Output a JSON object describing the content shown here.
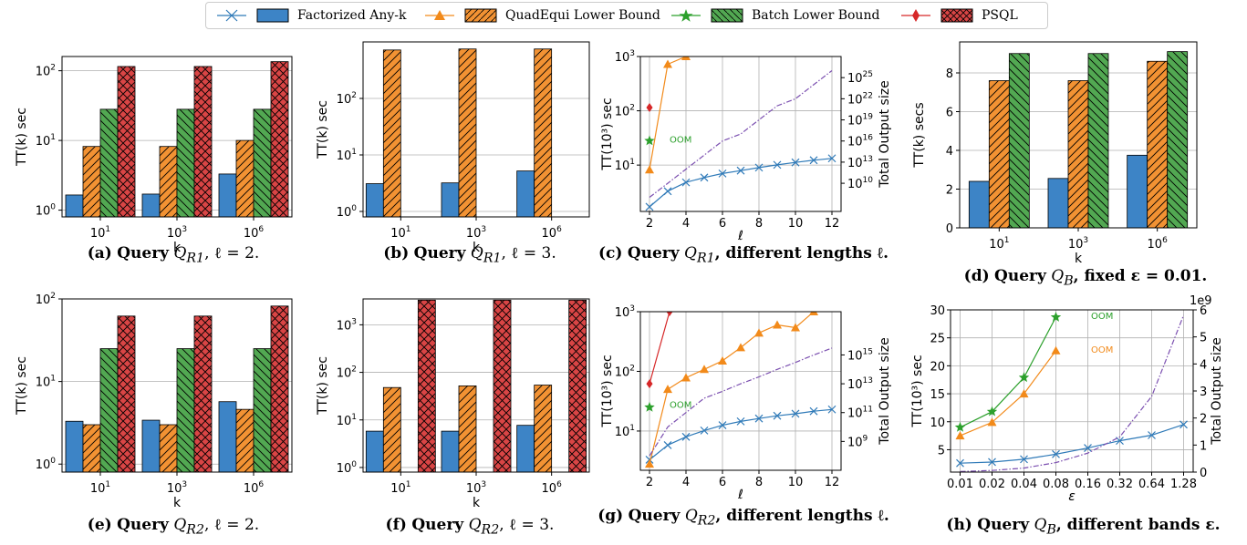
{
  "colors": {
    "factorized": "#3d84c6",
    "quadequi": "#f29233",
    "batch": "#52a852",
    "psql": "#d94545",
    "quad_line": "#f28a1a",
    "batch_line": "#2ca02c",
    "psql_line": "#d62728",
    "fact_line": "#2f7ab8",
    "output_line": "#7b4fb0"
  },
  "legend": [
    {
      "label": "Factorized Any-k",
      "icon": "x-marker-blue",
      "key": "factorized"
    },
    {
      "label": "QuadEqui Lower Bound",
      "icon": "triangle-marker-orange",
      "key": "quadequi"
    },
    {
      "label": "Batch Lower Bound",
      "icon": "star-marker-green",
      "key": "batch"
    },
    {
      "label": "PSQL",
      "icon": "diamond-marker-red",
      "key": "psql"
    }
  ],
  "panels": [
    {
      "id": "a",
      "caption": {
        "letter": "(a)",
        "word": "Query",
        "math": "Q",
        "sub": "R1",
        "rest": ", ℓ = 2."
      },
      "chart_data": {
        "type": "bar",
        "ylog": true,
        "ylim": [
          0.8,
          160
        ],
        "ylabel": "TT(k) sec",
        "xlabel": "k",
        "yticks": [
          {
            "v": 1,
            "b": "10",
            "e": "0"
          },
          {
            "v": 10,
            "b": "10",
            "e": "1"
          },
          {
            "v": 100,
            "b": "10",
            "e": "2"
          }
        ],
        "categories": [
          {
            "b": "10",
            "e": "1"
          },
          {
            "b": "10",
            "e": "3"
          },
          {
            "b": "10",
            "e": "6"
          }
        ],
        "series": [
          {
            "key": "factorized",
            "values": [
              1.65,
              1.7,
              3.3
            ]
          },
          {
            "key": "quadequi",
            "values": [
              8.2,
              8.2,
              10
            ]
          },
          {
            "key": "batch",
            "values": [
              28,
              28,
              28
            ]
          },
          {
            "key": "psql",
            "values": [
              115,
              115,
              135
            ]
          }
        ]
      }
    },
    {
      "id": "b",
      "caption": {
        "letter": "(b)",
        "word": "Query",
        "math": "Q",
        "sub": "R1",
        "rest": ", ℓ = 3."
      },
      "chart_data": {
        "type": "bar",
        "ylog": true,
        "ylim": [
          0.8,
          1000
        ],
        "ylabel": "TT(k) sec",
        "xlabel": "k",
        "yticks": [
          {
            "v": 1,
            "b": "10",
            "e": "0"
          },
          {
            "v": 10,
            "b": "10",
            "e": "1"
          },
          {
            "v": 100,
            "b": "10",
            "e": "2"
          }
        ],
        "categories": [
          {
            "b": "10",
            "e": "1"
          },
          {
            "b": "10",
            "e": "3"
          },
          {
            "b": "10",
            "e": "6"
          }
        ],
        "series": [
          {
            "key": "factorized",
            "values": [
              3.1,
              3.2,
              5.2
            ]
          },
          {
            "key": "quadequi",
            "values": [
              720,
              750,
              750
            ]
          },
          {
            "key": "batch",
            "values": [
              null,
              null,
              null
            ]
          },
          {
            "key": "psql",
            "values": [
              null,
              null,
              null
            ]
          }
        ]
      }
    },
    {
      "id": "c",
      "caption": {
        "letter": "(c)",
        "word": "Query",
        "math": "Q",
        "sub": "R1",
        "rest": ", different lengths ℓ."
      },
      "chart_data": {
        "type": "line",
        "ylog": true,
        "ylim": [
          1.4,
          1000
        ],
        "xlim": [
          1.5,
          12.5
        ],
        "ylabel": "TT(10³) sec",
        "xlabel": "ℓ",
        "y2label": "Total Output size",
        "y2log": true,
        "y2lim": [
          1000000.0,
          1e+28
        ],
        "xticks": [
          2,
          4,
          6,
          8,
          10,
          12
        ],
        "yticks": [
          {
            "v": 10,
            "b": "10",
            "e": "1"
          },
          {
            "v": 100,
            "b": "10",
            "e": "2"
          },
          {
            "v": 1000,
            "b": "10",
            "e": "3"
          }
        ],
        "y2ticks": [
          {
            "v": 10000000000.0,
            "b": "10",
            "e": "10"
          },
          {
            "v": 10000000000000.0,
            "b": "10",
            "e": "13"
          },
          {
            "v": 1e+16,
            "b": "10",
            "e": "16"
          },
          {
            "v": 1e+19,
            "b": "10",
            "e": "19"
          },
          {
            "v": 1e+22,
            "b": "10",
            "e": "22"
          },
          {
            "v": 1e+25,
            "b": "10",
            "e": "25"
          }
        ],
        "note": {
          "text": "OOM",
          "key": "batch",
          "x": 3.1,
          "y": 30
        },
        "series": [
          {
            "key": "factorized",
            "marker": "x",
            "x": [
              2,
              3,
              4,
              5,
              6,
              7,
              8,
              9,
              10,
              11,
              12
            ],
            "y": [
              1.7,
              3.3,
              4.8,
              5.9,
              7.0,
              7.9,
              9.0,
              10.1,
              11.2,
              12.3,
              13.3
            ]
          },
          {
            "key": "quadequi",
            "marker": "triangle",
            "x": [
              2,
              3,
              4
            ],
            "y": [
              8.2,
              720,
              1000
            ]
          },
          {
            "key": "batch",
            "marker": "star",
            "x": [
              2
            ],
            "y": [
              28
            ]
          },
          {
            "key": "psql",
            "marker": "diamond",
            "x": [
              2
            ],
            "y": [
              115
            ]
          },
          {
            "key": "output",
            "axis": "y2",
            "marker": "none",
            "x": [
              2,
              3,
              4,
              5,
              6,
              7,
              8,
              9,
              10,
              11,
              12
            ],
            "y": [
              100000000.0,
              10000000000.0,
              1000000000000.0,
              100000000000000.0,
              1e+16,
              1e+17,
              1e+19,
              1e+21,
              1e+22,
              1e+24,
              1e+26
            ]
          }
        ]
      }
    },
    {
      "id": "d",
      "caption": {
        "letter": "(d)",
        "word": "Query",
        "math": "Q",
        "sub": "B",
        "rest": ", fixed ε = 0.01."
      },
      "chart_data": {
        "type": "bar",
        "ylog": false,
        "ylim": [
          0,
          9.6
        ],
        "ylabel": "TT(k) secs",
        "xlabel": "k",
        "yticks": [
          {
            "v": 0,
            "t": "0"
          },
          {
            "v": 2,
            "t": "2"
          },
          {
            "v": 4,
            "t": "4"
          },
          {
            "v": 6,
            "t": "6"
          },
          {
            "v": 8,
            "t": "8"
          }
        ],
        "categories": [
          {
            "b": "10",
            "e": "1"
          },
          {
            "b": "10",
            "e": "3"
          },
          {
            "b": "10",
            "e": "6"
          }
        ],
        "series": [
          {
            "key": "factorized",
            "values": [
              2.4,
              2.55,
              3.75
            ]
          },
          {
            "key": "quadequi",
            "values": [
              7.6,
              7.6,
              8.6
            ]
          },
          {
            "key": "batch",
            "values": [
              9.0,
              9.0,
              9.1
            ]
          }
        ]
      }
    },
    {
      "id": "e",
      "caption": {
        "letter": "(e)",
        "word": "Query",
        "math": "Q",
        "sub": "R2",
        "rest": ", ℓ = 2."
      },
      "chart_data": {
        "type": "bar",
        "ylog": true,
        "ylim": [
          0.8,
          100
        ],
        "ylabel": "TT(k) sec",
        "xlabel": "k",
        "yticks": [
          {
            "v": 1,
            "b": "10",
            "e": "0"
          },
          {
            "v": 10,
            "b": "10",
            "e": "1"
          },
          {
            "v": 100,
            "b": "10",
            "e": "2"
          }
        ],
        "categories": [
          {
            "b": "10",
            "e": "1"
          },
          {
            "b": "10",
            "e": "3"
          },
          {
            "b": "10",
            "e": "6"
          }
        ],
        "series": [
          {
            "key": "factorized",
            "values": [
              3.3,
              3.4,
              5.7
            ]
          },
          {
            "key": "quadequi",
            "values": [
              3.0,
              3.0,
              4.6
            ]
          },
          {
            "key": "batch",
            "values": [
              25,
              25,
              25
            ]
          },
          {
            "key": "psql",
            "values": [
              62,
              62,
              82
            ]
          }
        ]
      }
    },
    {
      "id": "f",
      "caption": {
        "letter": "(f)",
        "word": "Query",
        "math": "Q",
        "sub": "R2",
        "rest": ", ℓ = 3."
      },
      "chart_data": {
        "type": "bar",
        "ylog": true,
        "ylim": [
          0.8,
          3500
        ],
        "ylabel": "TT(k) sec",
        "xlabel": "k",
        "yticks": [
          {
            "v": 1,
            "b": "10",
            "e": "0"
          },
          {
            "v": 10,
            "b": "10",
            "e": "1"
          },
          {
            "v": 100,
            "b": "10",
            "e": "2"
          },
          {
            "v": 1000,
            "b": "10",
            "e": "3"
          }
        ],
        "categories": [
          {
            "b": "10",
            "e": "1"
          },
          {
            "b": "10",
            "e": "3"
          },
          {
            "b": "10",
            "e": "6"
          }
        ],
        "series": [
          {
            "key": "factorized",
            "values": [
              5.8,
              5.8,
              7.7
            ]
          },
          {
            "key": "quadequi",
            "values": [
              48,
              52,
              54
            ]
          },
          {
            "key": "batch",
            "values": [
              null,
              null,
              null
            ]
          },
          {
            "key": "psql",
            "values": [
              3300,
              3300,
              3300
            ]
          }
        ]
      }
    },
    {
      "id": "g",
      "caption": {
        "letter": "(g)",
        "word": "Query",
        "math": "Q",
        "sub": "R2",
        "rest": ", different lengths ℓ."
      },
      "chart_data": {
        "type": "line",
        "ylog": true,
        "ylim": [
          2.2,
          1000
        ],
        "xlim": [
          1.5,
          12.5
        ],
        "ylabel": "TT(10³) sec",
        "xlabel": "ℓ",
        "y2label": "Total Output size",
        "y2log": true,
        "y2lim": [
          10000000.0,
          1e+18
        ],
        "xticks": [
          2,
          4,
          6,
          8,
          10,
          12
        ],
        "yticks": [
          {
            "v": 10,
            "b": "10",
            "e": "1"
          },
          {
            "v": 100,
            "b": "10",
            "e": "2"
          },
          {
            "v": 1000,
            "b": "10",
            "e": "3"
          }
        ],
        "y2ticks": [
          {
            "v": 1000000000.0,
            "b": "10",
            "e": "9"
          },
          {
            "v": 100000000000.0,
            "b": "10",
            "e": "11"
          },
          {
            "v": 10000000000000.0,
            "b": "10",
            "e": "13"
          },
          {
            "v": 1000000000000000.0,
            "b": "10",
            "e": "15"
          }
        ],
        "note": {
          "text": "OOM",
          "key": "batch",
          "x": 3.1,
          "y": 28
        },
        "series": [
          {
            "key": "factorized",
            "marker": "x",
            "x": [
              2,
              3,
              4,
              5,
              6,
              7,
              8,
              9,
              10,
              11,
              12
            ],
            "y": [
              3.3,
              5.8,
              8.0,
              10.2,
              12.5,
              14.5,
              16.2,
              18.0,
              19.5,
              21.5,
              23
            ]
          },
          {
            "key": "quadequi",
            "marker": "triangle",
            "x": [
              2,
              3,
              4,
              5,
              6,
              7,
              8,
              9,
              10,
              11
            ],
            "y": [
              2.8,
              50,
              78,
              108,
              150,
              250,
              440,
              600,
              540,
              1000
            ]
          },
          {
            "key": "batch",
            "marker": "star",
            "x": [
              2
            ],
            "y": [
              25
            ]
          },
          {
            "key": "psql",
            "marker": "diamond",
            "x": [
              2,
              3.1
            ],
            "y": [
              62,
              1000
            ]
          },
          {
            "key": "output",
            "axis": "y2",
            "marker": "none",
            "x": [
              2,
              3,
              4,
              5,
              6,
              7,
              8,
              9,
              10,
              11,
              12
            ],
            "y": [
              100000000.0,
              10000000000.0,
              100000000000.0,
              1000000000000.0,
              3000000000000.0,
              10000000000000.0,
              30000000000000.0,
              100000000000000.0,
              300000000000000.0,
              1000000000000000.0,
              3000000000000000.0
            ]
          }
        ]
      }
    },
    {
      "id": "h",
      "caption": {
        "letter": "(h)",
        "word": "Query",
        "math": "Q",
        "sub": "B",
        "rest": ", different bands ε."
      },
      "chart_data": {
        "type": "line",
        "ylog": false,
        "ylim": [
          1,
          30
        ],
        "xlim": [
          -0.3,
          7.3
        ],
        "ylabel": "TT(10³) sec",
        "xlabel": "ε",
        "y2label": "Total Output size",
        "y2log": false,
        "y2lim": [
          0,
          6
        ],
        "y2exp": "1e9",
        "xticks": [
          {
            "v": 0,
            "t": "0.01"
          },
          {
            "v": 1,
            "t": "0.02"
          },
          {
            "v": 2,
            "t": "0.04"
          },
          {
            "v": 3,
            "t": "0.08"
          },
          {
            "v": 4,
            "t": "0.16"
          },
          {
            "v": 5,
            "t": "0.32"
          },
          {
            "v": 6,
            "t": "0.64"
          },
          {
            "v": 7,
            "t": "1.28"
          }
        ],
        "yticks": [
          {
            "v": 5,
            "t": "5"
          },
          {
            "v": 10,
            "t": "10"
          },
          {
            "v": 15,
            "t": "15"
          },
          {
            "v": 20,
            "t": "20"
          },
          {
            "v": 25,
            "t": "25"
          },
          {
            "v": 30,
            "t": "30"
          }
        ],
        "y2ticks": [
          {
            "v": 0,
            "t": "0"
          },
          {
            "v": 1,
            "t": "1"
          },
          {
            "v": 2,
            "t": "2"
          },
          {
            "v": 3,
            "t": "3"
          },
          {
            "v": 4,
            "t": "4"
          },
          {
            "v": 5,
            "t": "5"
          },
          {
            "v": 6,
            "t": "6"
          }
        ],
        "notes": [
          {
            "text": "OOM",
            "key": "batch",
            "x": 4.1,
            "y": 29
          },
          {
            "text": "OOM",
            "key": "quadequi",
            "x": 4.1,
            "y": 23
          }
        ],
        "series": [
          {
            "key": "factorized",
            "marker": "x",
            "x": [
              0,
              1,
              2,
              3,
              4,
              5,
              6,
              7
            ],
            "y": [
              2.6,
              2.8,
              3.3,
              4.2,
              5.3,
              6.6,
              7.6,
              9.5
            ]
          },
          {
            "key": "quadequi",
            "marker": "triangle",
            "x": [
              0,
              1,
              2,
              3
            ],
            "y": [
              7.5,
              9.9,
              15,
              22.7
            ]
          },
          {
            "key": "batch",
            "marker": "star",
            "x": [
              0,
              1,
              2,
              3
            ],
            "y": [
              9,
              11.8,
              17.9,
              28.7
            ]
          },
          {
            "key": "output",
            "axis": "y2",
            "marker": "none",
            "x": [
              0,
              1,
              2,
              3,
              4,
              5,
              6,
              7
            ],
            "y": [
              0.02,
              0.06,
              0.15,
              0.35,
              0.7,
              1.3,
              2.8,
              5.8
            ]
          }
        ]
      }
    }
  ]
}
